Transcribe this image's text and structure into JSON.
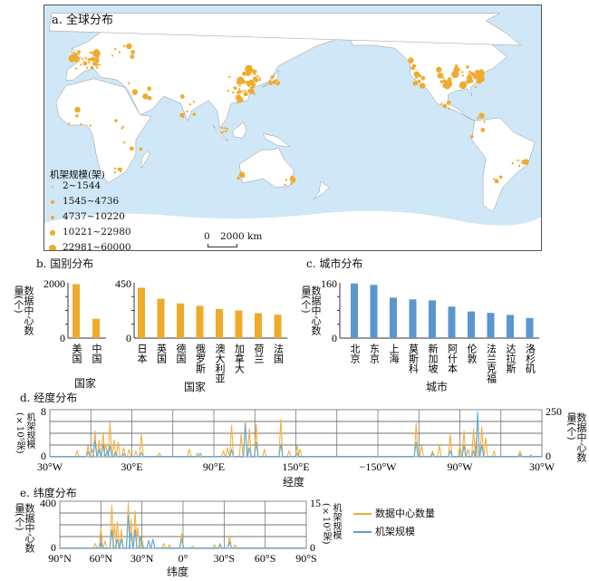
{
  "colors": {
    "orange": "#f0ab2c",
    "blue": "#5b9bd5",
    "ocean": "#cfe7f6",
    "land": "#ffffff"
  },
  "panel_a": {
    "title": "a. 全球分布",
    "legend_title": "机架规模(架)",
    "legend": [
      "2~1544",
      "1545~4736",
      "4737~10220",
      "10221~22980",
      "22981~60000"
    ],
    "scale": {
      "zero": "0",
      "label": "2000 km"
    }
  },
  "chart_data": [
    {
      "id": "b1",
      "type": "bar",
      "title": "b. 国别分布",
      "ylabel": "数据中心数量(个)",
      "xlabel": "国家",
      "ylim": [
        0,
        2000
      ],
      "yticks": [
        "0",
        "2000"
      ],
      "categories": [
        "美国",
        "中国"
      ],
      "values": [
        1950,
        700
      ]
    },
    {
      "id": "b2",
      "type": "bar",
      "ylim": [
        0,
        450
      ],
      "yticks": [
        "0",
        "450"
      ],
      "xlabel": "国家",
      "categories": [
        "日本",
        "英国",
        "德国",
        "俄罗斯",
        "澳大利亚",
        "加拿大",
        "荷兰",
        "法国"
      ],
      "values": [
        410,
        320,
        282,
        262,
        236,
        225,
        203,
        190
      ]
    },
    {
      "id": "c",
      "type": "bar",
      "title": "c. 城市分布",
      "ylabel": "数据中心数量(个)",
      "xlabel": "城市",
      "ylim": [
        0,
        160
      ],
      "yticks": [
        "0",
        "160"
      ],
      "categories": [
        "北京",
        "东京",
        "上海",
        "莫斯科",
        "新加坡",
        "阿什本",
        "伦敦",
        "法兰克福",
        "达拉斯",
        "洛杉矶"
      ],
      "values": [
        158,
        154,
        117,
        112,
        109,
        91,
        77,
        73,
        67,
        58
      ]
    },
    {
      "id": "d",
      "type": "line",
      "title": "d. 经度分布",
      "xlabel": "经度",
      "ylabel_left": "机架规模(×10⁵架)",
      "ylabel_right": "数据中心数量(个)",
      "ylim_left": [
        0,
        8
      ],
      "ylim_right": [
        0,
        250
      ],
      "xticks": [
        "30°W",
        "30°E",
        "90°E",
        "150°E",
        "−150°W",
        "90°W",
        "30°W"
      ],
      "yticks_left": [
        "0",
        "8"
      ],
      "yticks_right": [
        "0",
        "250"
      ],
      "series": [
        {
          "name": "数据中心数量",
          "axis": "right",
          "points": [
            [
              -10,
              30
            ],
            [
              -2,
              60
            ],
            [
              1,
              40
            ],
            [
              3,
              140
            ],
            [
              6,
              90
            ],
            [
              9,
              130
            ],
            [
              11,
              70
            ],
            [
              14,
              185
            ],
            [
              17,
              90
            ],
            [
              20,
              80
            ],
            [
              24,
              50
            ],
            [
              28,
              40
            ],
            [
              33,
              30
            ],
            [
              37,
              120
            ],
            [
              50,
              20
            ],
            [
              72,
              40
            ],
            [
              78,
              20
            ],
            [
              97,
              30
            ],
            [
              100,
              50
            ],
            [
              103,
              170
            ],
            [
              110,
              120
            ],
            [
              113,
              190
            ],
            [
              116,
              150
            ],
            [
              121,
              175
            ],
            [
              127,
              40
            ],
            [
              139,
              200
            ],
            [
              145,
              30
            ],
            [
              151,
              60
            ],
            [
              153,
              40
            ],
            [
              -122,
              180
            ],
            [
              -118,
              60
            ],
            [
              -110,
              30
            ],
            [
              -105,
              60
            ],
            [
              -97,
              120
            ],
            [
              -90,
              60
            ],
            [
              -87,
              140
            ],
            [
              -84,
              40
            ],
            [
              -80,
              150
            ],
            [
              -78,
              100
            ],
            [
              -77,
              210
            ],
            [
              -74,
              160
            ],
            [
              -71,
              100
            ],
            [
              -65,
              30
            ],
            [
              -46,
              30
            ],
            [
              -38,
              10
            ]
          ]
        },
        {
          "name": "机架规模",
          "axis": "left",
          "points": [
            [
              -2,
              0.8
            ],
            [
              3,
              2.8
            ],
            [
              6,
              1.2
            ],
            [
              9,
              2.2
            ],
            [
              12,
              1.0
            ],
            [
              14,
              2.0
            ],
            [
              18,
              0.8
            ],
            [
              24,
              0.5
            ],
            [
              37,
              0.7
            ],
            [
              80,
              0.6
            ],
            [
              103,
              1.2
            ],
            [
              113,
              5.7
            ],
            [
              116,
              1.5
            ],
            [
              121,
              2.5
            ],
            [
              139,
              2.2
            ],
            [
              151,
              0.6
            ],
            [
              -122,
              2.5
            ],
            [
              -110,
              0.5
            ],
            [
              -97,
              1.0
            ],
            [
              -87,
              2.0
            ],
            [
              -80,
              1.0
            ],
            [
              -77,
              7.7
            ],
            [
              -74,
              2.0
            ],
            [
              -46,
              0.4
            ]
          ]
        }
      ]
    },
    {
      "id": "e",
      "type": "line",
      "title": "e. 纬度分布",
      "xlabel": "纬度",
      "ylabel_left": "数据中心数量(个)",
      "ylabel_right": "机架规模(×10⁵架)",
      "ylim_left": [
        0,
        400
      ],
      "ylim_right": [
        0,
        15
      ],
      "xticks": [
        "90°N",
        "60°N",
        "30°N",
        "0°",
        "30°S",
        "60°S",
        "90°S"
      ],
      "yticks_left": [
        "0",
        "400"
      ],
      "yticks_right": [
        "0",
        "15"
      ],
      "series": [
        {
          "name": "数据中心数量",
          "axis": "left",
          "points": [
            [
              64,
              40
            ],
            [
              60,
              170
            ],
            [
              57,
              60
            ],
            [
              52,
              370
            ],
            [
              50,
              200
            ],
            [
              48,
              230
            ],
            [
              45,
              160
            ],
            [
              40,
              390
            ],
            [
              38,
              250
            ],
            [
              35,
              320
            ],
            [
              33,
              180
            ],
            [
              30,
              80
            ],
            [
              25,
              70
            ],
            [
              22,
              80
            ],
            [
              14,
              40
            ],
            [
              10,
              30
            ],
            [
              1,
              130
            ],
            [
              -7,
              20
            ],
            [
              -23,
              30
            ],
            [
              -27,
              40
            ],
            [
              -34,
              110
            ],
            [
              -38,
              30
            ]
          ]
        },
        {
          "name": "机架规模",
          "axis": "right",
          "points": [
            [
              60,
              2
            ],
            [
              52,
              6
            ],
            [
              48,
              3
            ],
            [
              45,
              3
            ],
            [
              40,
              10.5
            ],
            [
              38,
              5
            ],
            [
              35,
              6
            ],
            [
              31,
              4
            ],
            [
              25,
              2.5
            ],
            [
              22,
              3
            ],
            [
              1,
              3
            ],
            [
              -27,
              1
            ],
            [
              -34,
              2
            ]
          ]
        }
      ]
    }
  ],
  "legend_e": [
    "数据中心数量",
    "机架规模"
  ]
}
